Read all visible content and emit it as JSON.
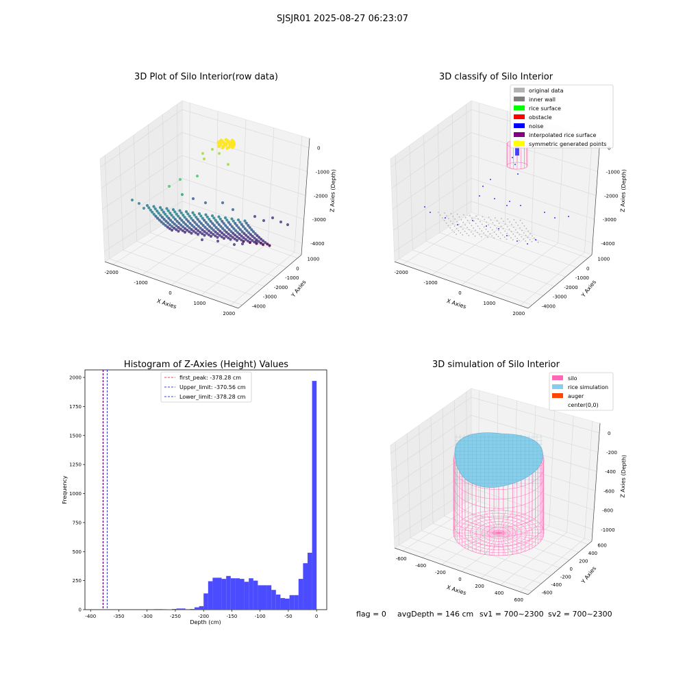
{
  "suptitle": "SJSJR01 2025-08-27 06:23:07",
  "panels": {
    "raw": {
      "title": "3D Plot of Silo Interior(row data)",
      "xlabel": "X Axies",
      "ylabel": "Y Axies",
      "zlabel": "Z Axies (Depth)",
      "xticks": [
        "-2000",
        "-1000",
        "0",
        "1000",
        "2000"
      ],
      "yticks": [
        "1000",
        "0",
        "-1000",
        "-2000",
        "-3000",
        "-4000"
      ],
      "zticks": [
        "0",
        "-1000",
        "-2000",
        "-3000",
        "-4000"
      ]
    },
    "classify": {
      "title": "3D classify of Silo Interior",
      "xlabel": "X Axies",
      "ylabel": "Y Axies",
      "zlabel": "Z Axies (Depth)",
      "xticks": [
        "-2000",
        "-1000",
        "0",
        "1000",
        "2000"
      ],
      "yticks": [
        "1000",
        "0",
        "-1000",
        "-2000",
        "-3000",
        "-4000"
      ],
      "zticks": [
        "0",
        "-1000",
        "-2000",
        "-3000",
        "-4000"
      ],
      "legend": [
        {
          "label": "original data",
          "color": "#b3b3b3"
        },
        {
          "label": "inner wall",
          "color": "#808080"
        },
        {
          "label": "rice surface",
          "color": "#00ff00"
        },
        {
          "label": "obstacle",
          "color": "#ff0000"
        },
        {
          "label": "noise",
          "color": "#0000ff"
        },
        {
          "label": "interpolated rice surface",
          "color": "#800080"
        },
        {
          "label": "symmetric generated points",
          "color": "#ffff00"
        }
      ]
    },
    "sim": {
      "title": "3D simulation of Silo Interior",
      "xlabel": "X Axies",
      "ylabel": "Y Axies",
      "zlabel": "Z Axies (Depth)",
      "xticks": [
        "-600",
        "-400",
        "-200",
        "0",
        "200",
        "400",
        "600"
      ],
      "yticks": [
        "600",
        "400",
        "200",
        "0",
        "-200",
        "-400",
        "-600"
      ],
      "zticks": [
        "0",
        "-200",
        "-400",
        "-600",
        "-800",
        "-1000"
      ],
      "legend": [
        {
          "label": "silo",
          "color": "#ff69b4"
        },
        {
          "label": "rice simulation",
          "color": "#87ceeb"
        },
        {
          "label": "auger",
          "color": "#ff4500"
        },
        {
          "label": "center(0,0)",
          "color": "#ffffff"
        }
      ]
    }
  },
  "status_line": {
    "flag": "flag = 0",
    "avg": "avgDepth = 146 cm",
    "sv1": "sv1 = 700~2300",
    "sv2": "sv2 = 700~2300"
  },
  "chart_data": {
    "type": "bar",
    "title": "Histogram of Z-Axies (Height) Values",
    "xlabel": "Depth (cm)",
    "ylabel": "Frequency",
    "xlim": [
      -410,
      18
    ],
    "ylim": [
      0,
      2065
    ],
    "xticks": [
      -400,
      -350,
      -300,
      -250,
      -200,
      -150,
      -100,
      -50,
      0
    ],
    "yticks": [
      0,
      250,
      500,
      750,
      1000,
      1250,
      1500,
      1750,
      2000
    ],
    "color": "#4b4bff",
    "bins": [
      {
        "x0": -288,
        "x1": -280,
        "v": 5
      },
      {
        "x0": -280,
        "x1": -272,
        "v": 5
      },
      {
        "x0": -264,
        "x1": -256,
        "v": 3
      },
      {
        "x0": -256,
        "x1": -248,
        "v": 6
      },
      {
        "x0": -248,
        "x1": -240,
        "v": 10
      },
      {
        "x0": -240,
        "x1": -232,
        "v": 10
      },
      {
        "x0": -232,
        "x1": -224,
        "v": 4
      },
      {
        "x0": -224,
        "x1": -216,
        "v": 6
      },
      {
        "x0": -216,
        "x1": -208,
        "v": 20
      },
      {
        "x0": -208,
        "x1": -200,
        "v": 30
      },
      {
        "x0": -200,
        "x1": -192,
        "v": 140
      },
      {
        "x0": -192,
        "x1": -184,
        "v": 245
      },
      {
        "x0": -184,
        "x1": -176,
        "v": 275
      },
      {
        "x0": -176,
        "x1": -168,
        "v": 275
      },
      {
        "x0": -168,
        "x1": -160,
        "v": 265
      },
      {
        "x0": -160,
        "x1": -152,
        "v": 290
      },
      {
        "x0": -152,
        "x1": -144,
        "v": 270
      },
      {
        "x0": -144,
        "x1": -136,
        "v": 270
      },
      {
        "x0": -136,
        "x1": -128,
        "v": 265
      },
      {
        "x0": -128,
        "x1": -120,
        "v": 240
      },
      {
        "x0": -120,
        "x1": -112,
        "v": 270
      },
      {
        "x0": -112,
        "x1": -104,
        "v": 250
      },
      {
        "x0": -104,
        "x1": -96,
        "v": 210
      },
      {
        "x0": -96,
        "x1": -88,
        "v": 210
      },
      {
        "x0": -88,
        "x1": -80,
        "v": 210
      },
      {
        "x0": -80,
        "x1": -72,
        "v": 170
      },
      {
        "x0": -72,
        "x1": -64,
        "v": 130
      },
      {
        "x0": -64,
        "x1": -56,
        "v": 100
      },
      {
        "x0": -56,
        "x1": -48,
        "v": 95
      },
      {
        "x0": -48,
        "x1": -40,
        "v": 125
      },
      {
        "x0": -40,
        "x1": -32,
        "v": 125
      },
      {
        "x0": -32,
        "x1": -24,
        "v": 265
      },
      {
        "x0": -24,
        "x1": -16,
        "v": 400
      },
      {
        "x0": -16,
        "x1": -8,
        "v": 490
      },
      {
        "x0": -8,
        "x1": 0,
        "v": 1970
      }
    ],
    "lines": [
      {
        "label": "first_peak: -378.28 cm",
        "x": -378.28,
        "color": "#ff0000"
      },
      {
        "label": "Upper_limit: -370.56 cm",
        "x": -370.56,
        "color": "#0000cc"
      },
      {
        "label": "Lower_limit: -378.28 cm",
        "x": -378.28,
        "color": "#0000cc"
      }
    ]
  }
}
